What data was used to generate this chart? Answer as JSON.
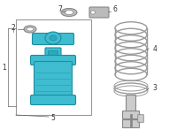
{
  "bg_color": "#ffffff",
  "part_color": "#40bcd0",
  "part_stroke": "#1a8fa0",
  "part_dark": "#2aaabb",
  "spring_stroke": "#999999",
  "line_color": "#666666",
  "label_color": "#333333",
  "label_fontsize": 5.5,
  "box_color": "#999999",
  "small_part_color": "#bbbbbb",
  "small_part_stroke": "#888888",
  "strut_color": "#cccccc",
  "strut_stroke": "#888888"
}
